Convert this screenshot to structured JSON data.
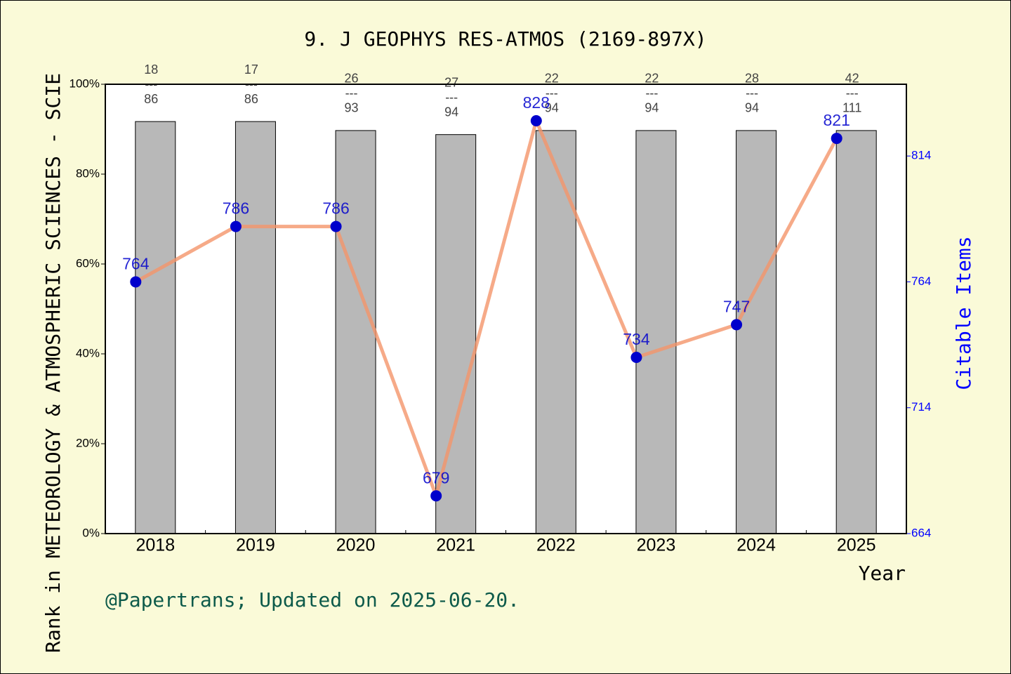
{
  "chart_data": {
    "type": "bar",
    "title": "9. J GEOPHYS RES-ATMOS (2169-897X)",
    "y_label": "Rank in METEOROLOGY & ATMOSPHERIC SCIENCES - SCIE",
    "y2_label": "Citable Items",
    "x_label": "Year",
    "footnote": "@Papertrans; Updated on 2025-06-20.",
    "categories": [
      "2018",
      "2019",
      "2020",
      "2021",
      "2022",
      "2023",
      "2024",
      "2025"
    ],
    "series": [
      {
        "type": "bar",
        "color": "#b8b8b8",
        "values": [
          91.7,
          91.7,
          89.7,
          88.8,
          89.7,
          89.7,
          89.7,
          89.7
        ]
      },
      {
        "type": "line",
        "axis": "y2",
        "color": "#f4956a",
        "marker_color": "#0000cc",
        "values": [
          764,
          786,
          786,
          679,
          828,
          734,
          747,
          821
        ]
      }
    ],
    "bar_labels": [
      {
        "rank": "18",
        "total": "86"
      },
      {
        "rank": "17",
        "total": "86"
      },
      {
        "rank": "26",
        "total": "93"
      },
      {
        "rank": "27",
        "total": "94"
      },
      {
        "rank": "22",
        "total": "94"
      },
      {
        "rank": "22",
        "total": "94"
      },
      {
        "rank": "28",
        "total": "94"
      },
      {
        "rank": "42",
        "total": "111"
      }
    ],
    "bar_label_separator": "---",
    "ylim": [
      0,
      100
    ],
    "yticks": [
      {
        "value": 0,
        "label": "0%"
      },
      {
        "value": 20,
        "label": "20%"
      },
      {
        "value": 40,
        "label": "40%"
      },
      {
        "value": 60,
        "label": "60%"
      },
      {
        "value": 80,
        "label": "80%"
      },
      {
        "value": 100,
        "label": "100%"
      }
    ],
    "y2lim": [
      664,
      842.5
    ],
    "y2ticks": [
      664,
      714,
      764,
      814
    ]
  }
}
